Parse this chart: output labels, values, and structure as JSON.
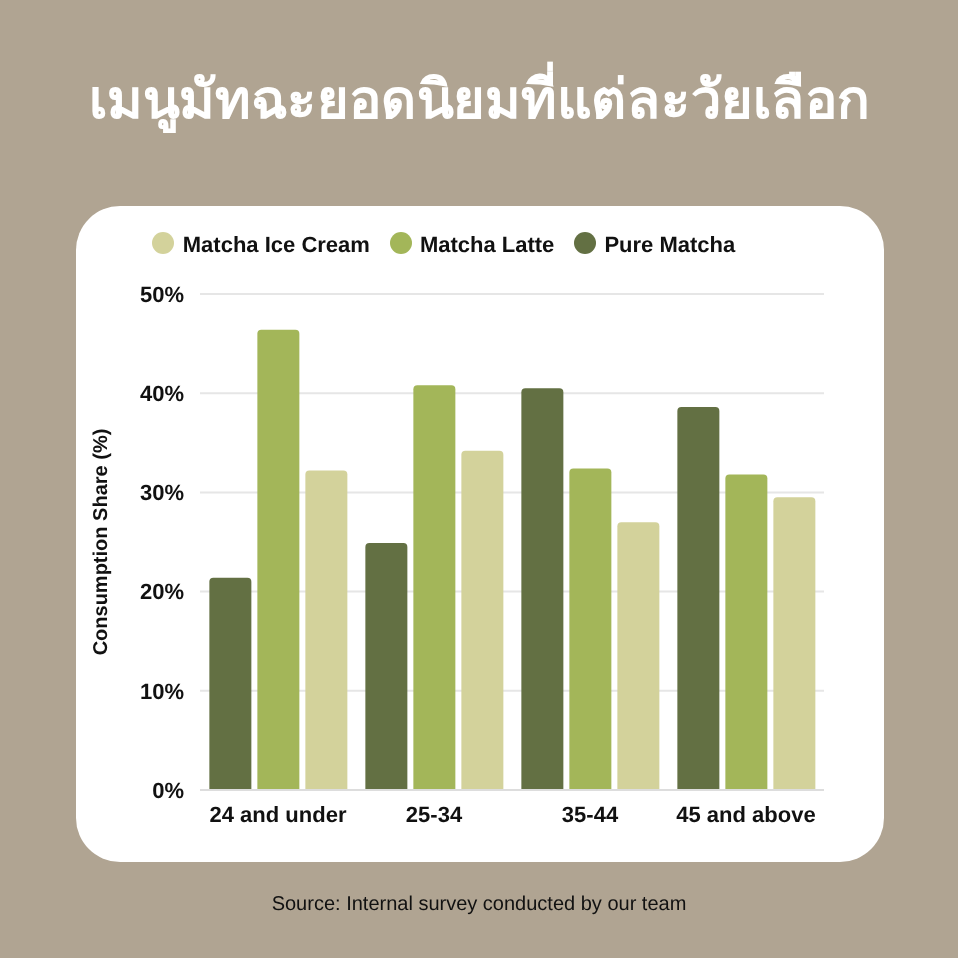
{
  "chart_data": {
    "type": "bar",
    "title": "เมนูมัทฉะยอดนิยมที่แต่ละวัยเลือก",
    "ylabel": "Consumption Share (%)",
    "annotations": [
      "Source: Internal survey conducted by our team"
    ],
    "categories": [
      "24 and under",
      "25-34",
      "35-44",
      "45 and above"
    ],
    "series": [
      {
        "name": "Pure Matcha",
        "color": "#637043",
        "values": [
          21.4,
          24.9,
          40.5,
          38.6
        ]
      },
      {
        "name": "Matcha Latte",
        "color": "#a3b659",
        "values": [
          46.4,
          40.8,
          32.4,
          31.8
        ]
      },
      {
        "name": "Matcha Ice Cream",
        "color": "#d3d29b",
        "values": [
          32.2,
          34.2,
          27.0,
          29.5
        ]
      }
    ],
    "ylim": [
      0,
      50
    ],
    "yticks": [
      {
        "value": 0,
        "label": "0%"
      },
      {
        "value": 10,
        "label": "10%"
      },
      {
        "value": 20,
        "label": "20%"
      },
      {
        "value": 30,
        "label": "30%"
      },
      {
        "value": 40,
        "label": "40%"
      },
      {
        "value": 50,
        "label": "50%"
      }
    ],
    "grid": "y",
    "legend": "top"
  }
}
